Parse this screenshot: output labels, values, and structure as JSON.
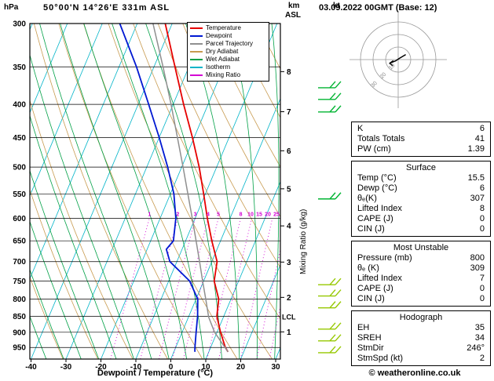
{
  "header": {
    "hpa": "hPa",
    "station": "50°00'N 14°26'E 331m ASL",
    "km": "km",
    "asl": "ASL",
    "datetime": "03.09.2022 00GMT (Base: 12)",
    "copyright": "© weatheronline.co.uk"
  },
  "axes": {
    "pressure_ticks": [
      300,
      350,
      400,
      450,
      500,
      550,
      600,
      650,
      700,
      750,
      800,
      850,
      900,
      950
    ],
    "temp_ticks": [
      -40,
      -30,
      -20,
      -10,
      0,
      10,
      20,
      30
    ],
    "km_ticks": [
      1,
      2,
      3,
      4,
      5,
      6,
      7,
      8
    ],
    "xlabel": "Dewpoint / Temperature (°C)",
    "mixing_ratio_axis_label": "Mixing Ratio (g/kg)",
    "lcl_label": "LCL"
  },
  "legend": [
    {
      "label": "Temperature",
      "color": "#e60000"
    },
    {
      "label": "Dewpoint",
      "color": "#0018d2"
    },
    {
      "label": "Parcel Trajectory",
      "color": "#8f8f8f"
    },
    {
      "label": "Dry Adiabat",
      "color": "#c89b50"
    },
    {
      "label": "Wet Adiabat",
      "color": "#00a046"
    },
    {
      "label": "Isotherm",
      "color": "#00b4c8"
    },
    {
      "label": "Mixing Ratio",
      "color": "#d400d4"
    }
  ],
  "colors": {
    "isotherm": "#00b4c8",
    "dry_adiabat": "#c89b50",
    "wet_adiabat": "#00a046",
    "mixing_ratio": "#d400d4",
    "hodograph_rings": "#999999"
  },
  "chart_data": {
    "type": "line",
    "title": "Skew-T log-P sounding, 50°00'N 14°26'E 331m ASL, 03.09.2022 00GMT (Base: 12)",
    "x_axis": {
      "label": "Dewpoint / Temperature (°C)",
      "range": [
        -40,
        38
      ],
      "ticks": [
        -40,
        -30,
        -20,
        -10,
        0,
        10,
        20,
        30
      ]
    },
    "y_axis": {
      "label": "hPa",
      "scale": "log",
      "range": [
        300,
        990
      ],
      "ticks": [
        300,
        350,
        400,
        450,
        500,
        550,
        600,
        650,
        700,
        750,
        800,
        850,
        900,
        950
      ]
    },
    "secondary_y_axis": {
      "label": "km ASL",
      "ticks": [
        1,
        2,
        3,
        4,
        5,
        6,
        7,
        8
      ]
    },
    "series": [
      {
        "name": "Temperature",
        "color": "#e60000",
        "width": 1.8,
        "points": [
          [
            965,
            15.5
          ],
          [
            950,
            14.2
          ],
          [
            900,
            11.0
          ],
          [
            850,
            8.0
          ],
          [
            800,
            6.5
          ],
          [
            750,
            3.0
          ],
          [
            700,
            1.5
          ],
          [
            650,
            -2.5
          ],
          [
            600,
            -6.5
          ],
          [
            550,
            -10.5
          ],
          [
            500,
            -15.0
          ],
          [
            450,
            -20.5
          ],
          [
            400,
            -27.0
          ],
          [
            350,
            -34.0
          ],
          [
            300,
            -42.0
          ]
        ]
      },
      {
        "name": "Dewpoint",
        "color": "#0018d2",
        "width": 1.8,
        "points": [
          [
            965,
            6.0
          ],
          [
            950,
            5.5
          ],
          [
            900,
            4.0
          ],
          [
            850,
            2.5
          ],
          [
            800,
            0.5
          ],
          [
            750,
            -4.0
          ],
          [
            700,
            -12.0
          ],
          [
            670,
            -14.5
          ],
          [
            650,
            -13.5
          ],
          [
            600,
            -15.5
          ],
          [
            550,
            -19.0
          ],
          [
            500,
            -24.0
          ],
          [
            450,
            -30.0
          ],
          [
            400,
            -37.0
          ],
          [
            350,
            -45.0
          ],
          [
            300,
            -55.0
          ]
        ]
      },
      {
        "name": "Parcel Trajectory",
        "color": "#8f8f8f",
        "width": 1.5,
        "points": [
          [
            965,
            15.5
          ],
          [
            900,
            9.3
          ],
          [
            853,
            5.8
          ],
          [
            800,
            2.8
          ],
          [
            750,
            -0.3
          ],
          [
            700,
            -3.5
          ],
          [
            650,
            -7.0
          ],
          [
            600,
            -10.8
          ],
          [
            550,
            -15.0
          ],
          [
            500,
            -19.6
          ],
          [
            450,
            -24.8
          ],
          [
            400,
            -30.6
          ],
          [
            350,
            -37.4
          ],
          [
            300,
            -45.5
          ]
        ]
      }
    ],
    "mixing_ratio_lines": [
      1,
      2,
      3,
      4,
      5,
      8,
      10,
      15,
      20,
      25
    ],
    "lcl_pressure": 853,
    "wind_barbs": [
      {
        "p": 377,
        "color": "#00b432"
      },
      {
        "p": 393,
        "color": "#00b432"
      },
      {
        "p": 411,
        "color": "#00b432"
      },
      {
        "p": 560,
        "color": "#00b432"
      },
      {
        "p": 760,
        "color": "#96c800"
      },
      {
        "p": 791,
        "color": "#96c800"
      },
      {
        "p": 825,
        "color": "#96c800"
      },
      {
        "p": 890,
        "color": "#96c800"
      },
      {
        "p": 928,
        "color": "#96c800"
      },
      {
        "p": 968,
        "color": "#96c800"
      }
    ]
  },
  "hodograph": {
    "unit": "kt",
    "rings_kt": [
      10,
      20,
      30
    ],
    "trace_kt": [
      [
        6,
        4
      ],
      [
        1,
        1
      ],
      [
        -2,
        -1
      ],
      [
        -7,
        -3
      ]
    ]
  },
  "indices": {
    "boxes": [
      {
        "title": "",
        "rows": [
          [
            "K",
            "6"
          ],
          [
            "Totals Totals",
            "41"
          ],
          [
            "PW (cm)",
            "1.39"
          ]
        ]
      },
      {
        "title": "Surface",
        "rows": [
          [
            "Temp (°C)",
            "15.5"
          ],
          [
            "Dewp (°C)",
            "6"
          ],
          [
            "θₑ(K)",
            "307"
          ],
          [
            "Lifted Index",
            "8"
          ],
          [
            "CAPE (J)",
            "0"
          ],
          [
            "CIN (J)",
            "0"
          ]
        ]
      },
      {
        "title": "Most Unstable",
        "rows": [
          [
            "Pressure (mb)",
            "800"
          ],
          [
            "θₑ (K)",
            "309"
          ],
          [
            "Lifted Index",
            "7"
          ],
          [
            "CAPE (J)",
            "0"
          ],
          [
            "CIN (J)",
            "0"
          ]
        ]
      },
      {
        "title": "Hodograph",
        "rows": [
          [
            "EH",
            "35"
          ],
          [
            "SREH",
            "34"
          ],
          [
            "StmDir",
            "246°"
          ],
          [
            "StmSpd (kt)",
            "2"
          ]
        ]
      }
    ]
  }
}
